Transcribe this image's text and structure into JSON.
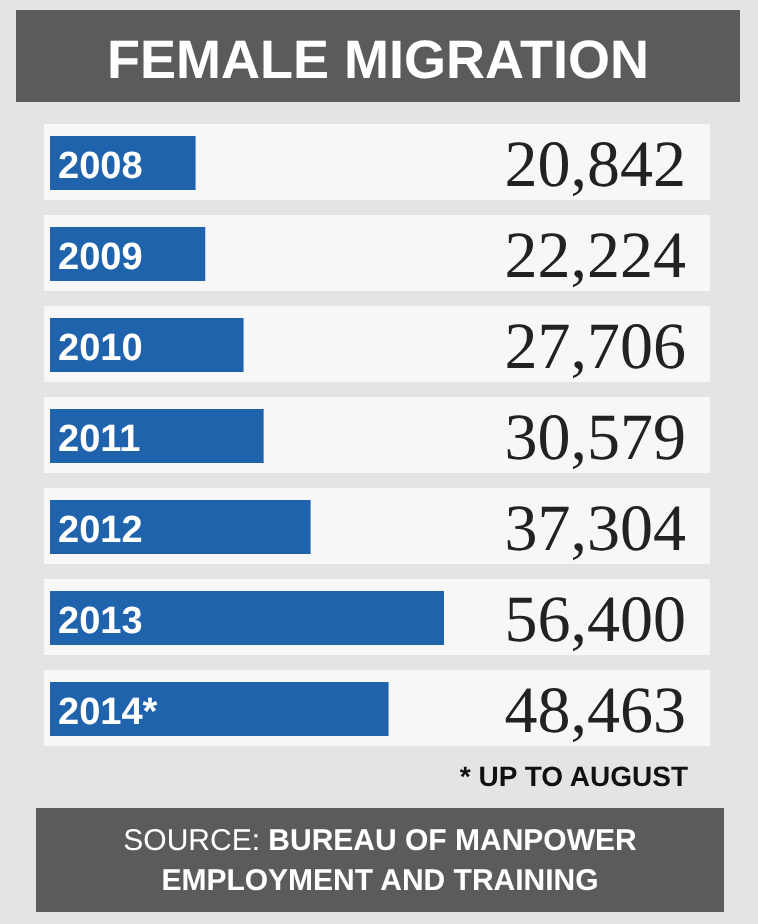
{
  "chart_data": {
    "type": "bar",
    "orientation": "horizontal",
    "title": "FEMALE MIGRATION",
    "categories": [
      "2008",
      "2009",
      "2010",
      "2011",
      "2012",
      "2013",
      "2014*"
    ],
    "values": [
      20842,
      22224,
      27706,
      30579,
      37304,
      56400,
      48463
    ],
    "value_labels": [
      "20,842",
      "22,224",
      "27,706",
      "30,579",
      "37,304",
      "56,400",
      "48,463"
    ],
    "color": "#1f63ad",
    "annotations": [
      "* UP TO AUGUST",
      "SOURCE: BUREAU OF MANPOWER EMPLOYMENT AND TRAINING"
    ]
  }
}
